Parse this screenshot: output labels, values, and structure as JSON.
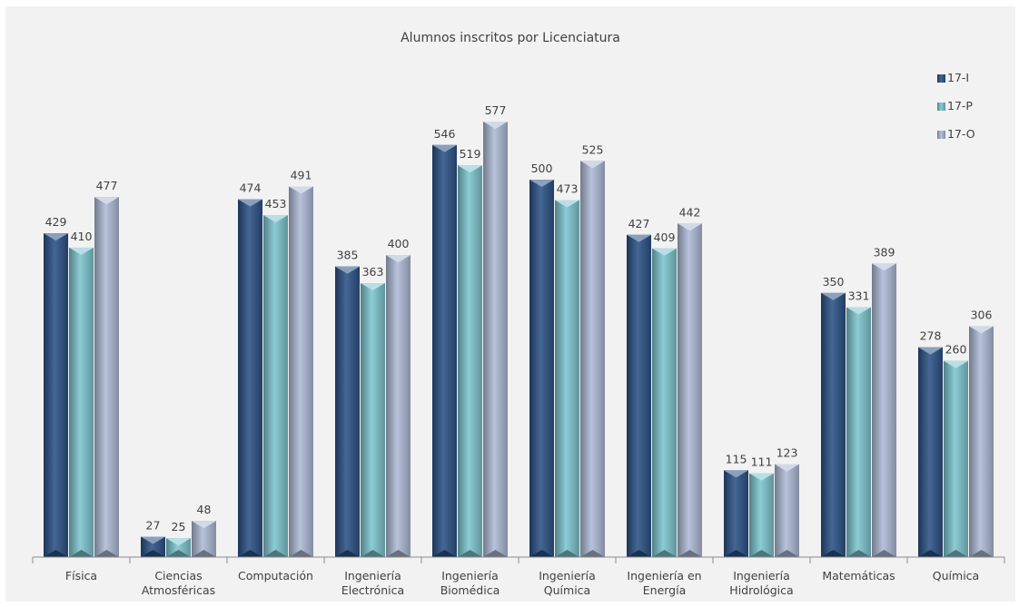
{
  "chart_data": {
    "type": "bar",
    "title": "Alumnos inscritos por Licenciatura",
    "xlabel": "",
    "ylabel": "",
    "categories": [
      [
        "Física"
      ],
      [
        "Ciencias",
        "Atmosféricas"
      ],
      [
        "Computación"
      ],
      [
        "Ingeniería",
        "Electrónica"
      ],
      [
        "Ingeniería",
        "Biomédica"
      ],
      [
        "Ingeniería",
        "Química"
      ],
      [
        "Ingeniería en",
        "Energía"
      ],
      [
        "Ingeniería",
        "Hidrológica"
      ],
      [
        "Matemáticas"
      ],
      [
        "Química"
      ]
    ],
    "series": [
      {
        "name": "17-I",
        "color": "#2c5286",
        "values": [
          429,
          27,
          474,
          385,
          546,
          500,
          427,
          115,
          350,
          278
        ]
      },
      {
        "name": "17-P",
        "color": "#7ec5cf",
        "values": [
          410,
          25,
          453,
          363,
          519,
          473,
          409,
          111,
          331,
          260
        ]
      },
      {
        "name": "17-O",
        "color": "#aebbd6",
        "values": [
          477,
          48,
          491,
          400,
          577,
          525,
          442,
          123,
          389,
          306
        ]
      }
    ],
    "ylim": [
      0,
      577
    ],
    "grid": false,
    "data_labels": true,
    "legend": "top-right"
  }
}
